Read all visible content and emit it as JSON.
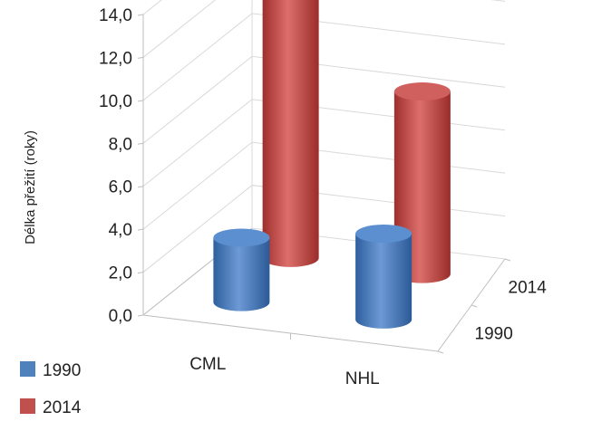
{
  "chart_data": {
    "type": "bar",
    "style": "3d-cylinder",
    "categories": [
      "CML",
      "NHL"
    ],
    "series": [
      {
        "name": "1990",
        "values": [
          3.0,
          4.0
        ],
        "color": "#4f81bd"
      },
      {
        "name": "2014",
        "values": [
          14.0,
          8.5
        ],
        "color": "#c0504d"
      }
    ],
    "ylabel": "Délka přežití (roky)",
    "ylim": [
      0,
      14
    ],
    "yticks": [
      "0,0",
      "2,0",
      "4,0",
      "6,0",
      "8,0",
      "10,0",
      "12,0",
      "14,0"
    ],
    "depth_labels": [
      "1990",
      "2014"
    ],
    "grid": true,
    "legend": "bottom-left"
  }
}
